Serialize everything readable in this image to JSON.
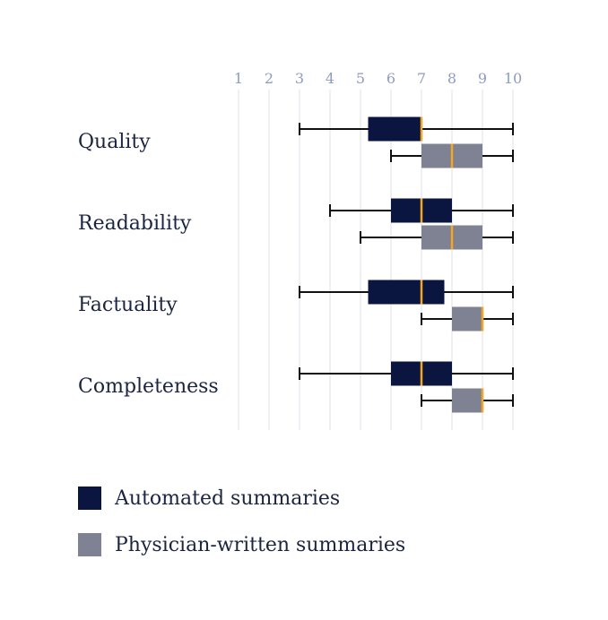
{
  "chart_data": {
    "type": "box",
    "orientation": "horizontal",
    "x_ticks": [
      1,
      2,
      3,
      4,
      5,
      6,
      7,
      8,
      9,
      10
    ],
    "xlim": [
      1,
      10
    ],
    "grid": true,
    "legend_position": "bottom-left",
    "categories": [
      "Quality",
      "Readability",
      "Factuality",
      "Completeness"
    ],
    "series": [
      {
        "name": "Automated summaries",
        "color": "#0b1640",
        "boxes": [
          {
            "whisker_low": 3,
            "q1": 5.25,
            "median": 7,
            "q3": 7,
            "whisker_high": 10
          },
          {
            "whisker_low": 4,
            "q1": 6,
            "median": 7,
            "q3": 8,
            "whisker_high": 10
          },
          {
            "whisker_low": 3,
            "q1": 5.25,
            "median": 7,
            "q3": 7.75,
            "whisker_high": 10
          },
          {
            "whisker_low": 3,
            "q1": 6,
            "median": 7,
            "q3": 8,
            "whisker_high": 10
          }
        ]
      },
      {
        "name": "Physician-written summaries",
        "color": "#7f8293",
        "boxes": [
          {
            "whisker_low": 6,
            "q1": 7,
            "median": 8,
            "q3": 9,
            "whisker_high": 10
          },
          {
            "whisker_low": 5,
            "q1": 7,
            "median": 8,
            "q3": 9,
            "whisker_high": 10
          },
          {
            "whisker_low": 7,
            "q1": 8,
            "median": 9,
            "q3": 9,
            "whisker_high": 10
          },
          {
            "whisker_low": 7,
            "q1": 8,
            "median": 9,
            "q3": 9,
            "whisker_high": 10
          }
        ]
      }
    ],
    "median_color": "#f4a522",
    "grid_color": "#dde0ea"
  }
}
